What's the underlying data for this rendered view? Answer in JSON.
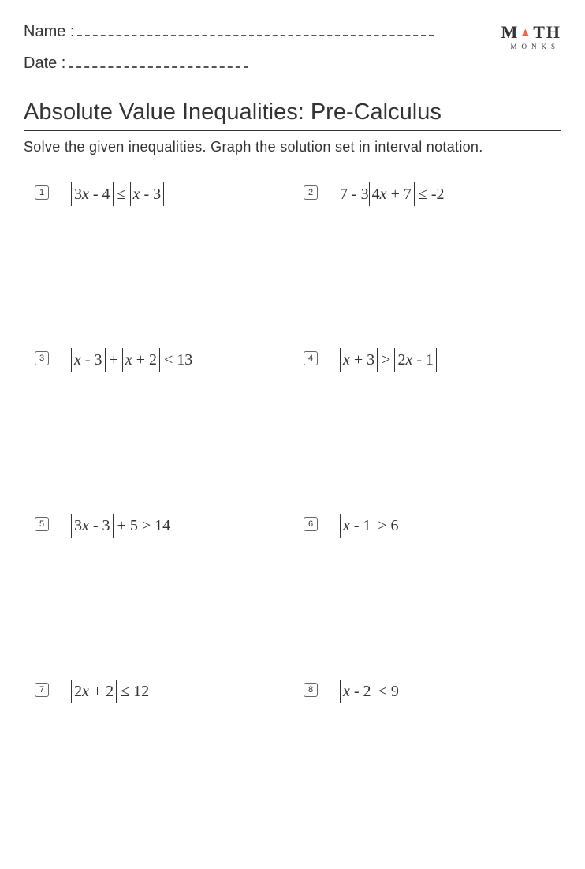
{
  "header": {
    "name_label": "Name :",
    "date_label": "Date :"
  },
  "logo": {
    "text_left": "M",
    "triangle": "▲",
    "text_right": "TH",
    "sub": "MONKS"
  },
  "title": "Absolute Value Inequalities: Pre-Calculus",
  "instructions": "Solve the given inequalities. Graph the solution set in interval notation.",
  "problems": [
    {
      "n": "1",
      "html": "<span class='abar'>3<span class='it'>x</span> - 4</span> ≤ <span class='abar'><span class='it'>x</span> - 3</span>"
    },
    {
      "n": "2",
      "html": "7 - 3<span class='abar'>4<span class='it'>x</span> + 7</span> ≤ -2"
    },
    {
      "n": "3",
      "html": "<span class='abar'><span class='it'>x</span> - 3</span> + <span class='abar'><span class='it'>x</span> + 2</span> &lt; 13"
    },
    {
      "n": "4",
      "html": "<span class='abar'><span class='it'>x</span> + 3</span> &gt; <span class='abar'>2<span class='it'>x</span> - 1</span>"
    },
    {
      "n": "5",
      "html": "<span class='abar'>3<span class='it'>x</span> - 3</span> + 5 &gt; 14"
    },
    {
      "n": "6",
      "html": "<span class='abar'><span class='it'>x</span> - 1</span> ≥ 6"
    },
    {
      "n": "7",
      "html": "<span class='abar'>2<span class='it'>x</span> + 2</span> ≤ 12"
    },
    {
      "n": "8",
      "html": "<span class='abar'><span class='it'>x</span> - 2</span> &lt; 9"
    }
  ]
}
